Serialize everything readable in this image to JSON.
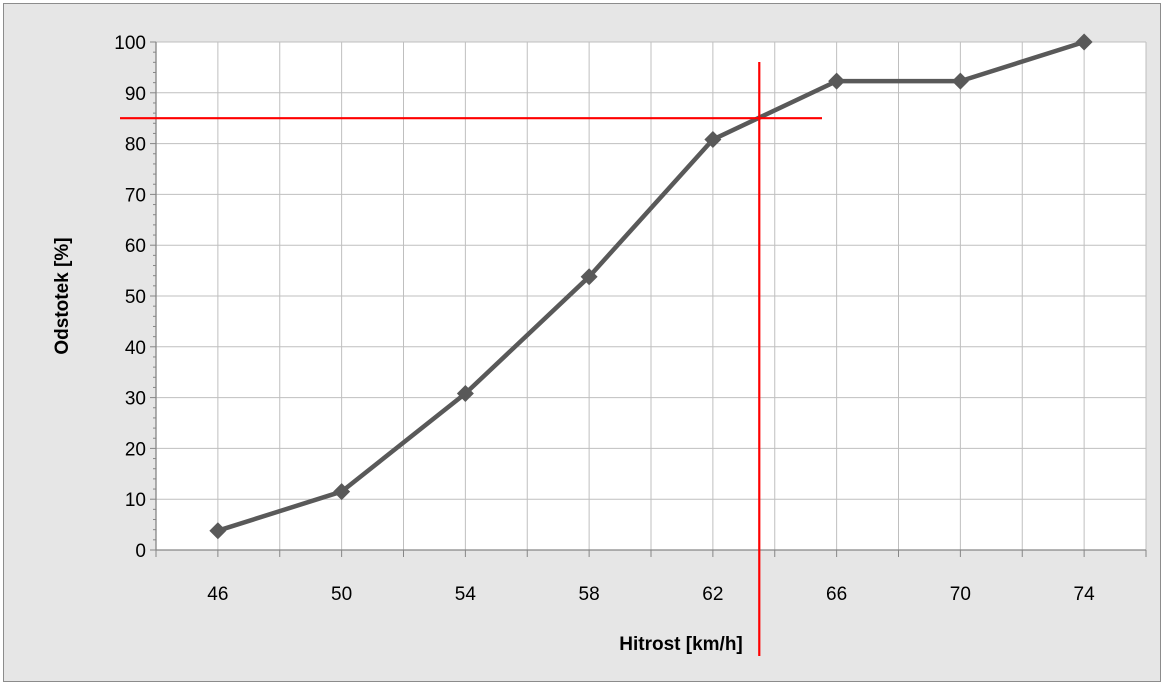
{
  "chart_data": {
    "type": "line",
    "title": "",
    "xlabel": "Hitrost [km/h]",
    "ylabel": "Odstotek [%]",
    "x_categories": [
      "46",
      "50",
      "54",
      "58",
      "62",
      "66",
      "70",
      "74"
    ],
    "y_ticks": [
      "0",
      "10",
      "20",
      "30",
      "40",
      "50",
      "60",
      "70",
      "80",
      "90",
      "100"
    ],
    "ylim": [
      0,
      100
    ],
    "grid": true,
    "legend": "none",
    "series": [
      {
        "color": "#595959",
        "marker": "diamond",
        "x": [
          46,
          50,
          54,
          58,
          62,
          66,
          70,
          74
        ],
        "y": [
          3.8,
          11.5,
          30.8,
          53.8,
          80.8,
          92.3,
          92.3,
          100
        ]
      }
    ],
    "reference_lines": {
      "color": "#ff0000",
      "horizontal_y": 85,
      "vertical_x": 63.5
    }
  }
}
